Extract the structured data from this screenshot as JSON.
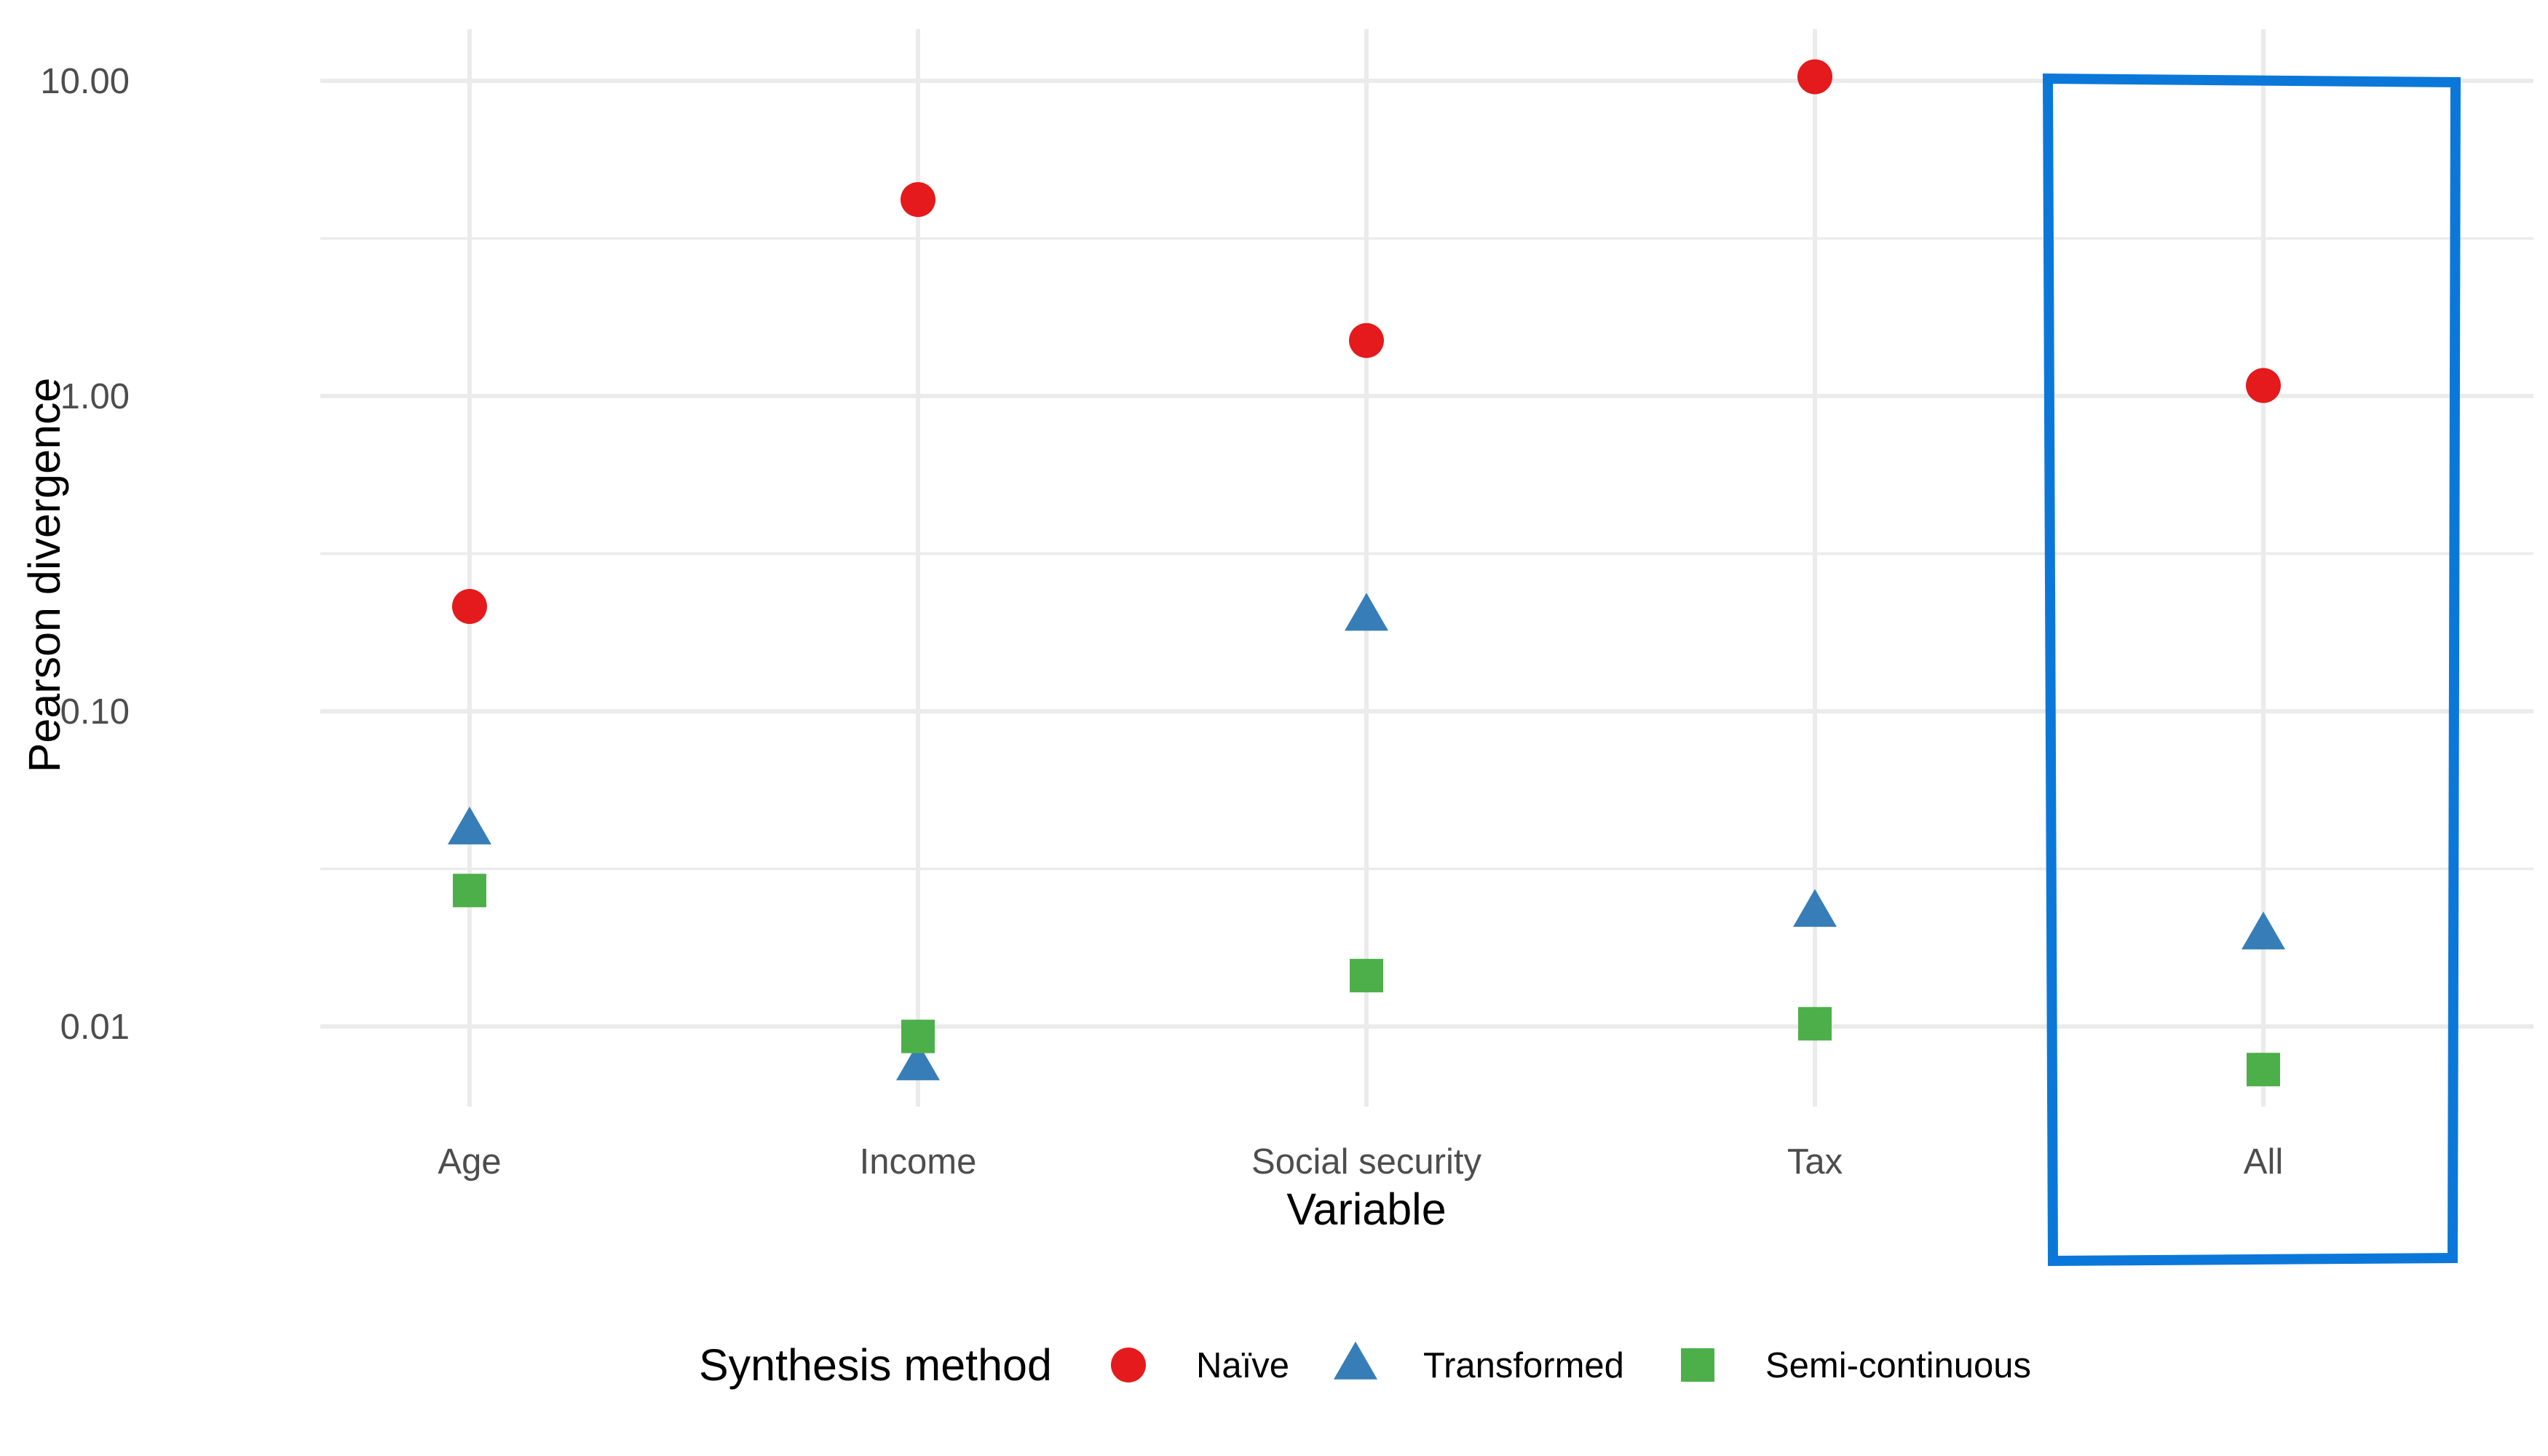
{
  "chart_data": {
    "type": "scatter",
    "title": "",
    "xlabel": "Variable",
    "ylabel": "Pearson divergence",
    "yscale": "log10",
    "ylim": [
      0.004,
      13
    ],
    "grid": true,
    "categories": [
      "Age",
      "Income",
      "Social security",
      "Tax",
      "All"
    ],
    "y_ticks": [
      0.01,
      0.1,
      1,
      10
    ],
    "y_tick_labels": [
      "0.01",
      "0.10",
      "1.00",
      "10.00"
    ],
    "series": [
      {
        "name": "Naïve",
        "shape": "circle",
        "color": "#e41a1c",
        "values": [
          0.215,
          4.2,
          1.5,
          10.3,
          1.08
        ]
      },
      {
        "name": "Transformed",
        "shape": "triangle",
        "color": "#377eb8",
        "values": [
          0.042,
          0.0075,
          0.2,
          0.023,
          0.0195
        ]
      },
      {
        "name": "Semi-continuous",
        "shape": "square",
        "color": "#4daf4a",
        "values": [
          0.027,
          0.0093,
          0.0145,
          0.0102,
          0.0073
        ]
      }
    ],
    "legend": {
      "title": "Synthesis method",
      "position": "bottom"
    },
    "annotations": [
      {
        "type": "highlight-box",
        "target_category": "All",
        "color": "#0b78d9"
      }
    ]
  }
}
